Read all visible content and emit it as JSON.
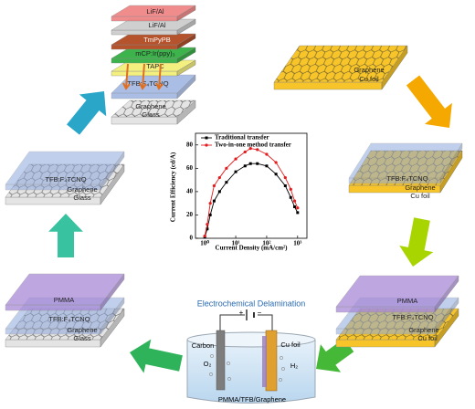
{
  "chart_data": {
    "type": "line",
    "xscale": "log",
    "legend": "upper left",
    "xlabel": "Current Density (mA/cm²)",
    "ylabel": "Current Efficiency (cd/A)",
    "x": [
      1,
      1.2,
      1.5,
      2,
      3,
      5,
      10,
      20,
      30,
      50,
      100,
      200,
      400,
      600,
      800,
      1000
    ],
    "series": [
      {
        "name": "Traditional transfer",
        "color": "#000000",
        "marker": "square",
        "values": [
          1,
          8,
          20,
          32,
          40,
          48,
          57,
          62,
          64,
          64,
          62,
          55,
          45,
          35,
          27,
          22
        ]
      },
      {
        "name": "Two-in-one method transfer",
        "color": "#e41a1c",
        "marker": "circle",
        "values": [
          2,
          12,
          30,
          45,
          52,
          60,
          68,
          74,
          77,
          76,
          72,
          65,
          52,
          42,
          32,
          26
        ]
      }
    ],
    "xlim": [
      0.5,
      2000
    ],
    "xticks": [
      {
        "value": 1,
        "label": "10⁰"
      },
      {
        "value": 10,
        "label": "10¹"
      },
      {
        "value": 100,
        "label": "10²"
      },
      {
        "value": 1000,
        "label": "10³"
      }
    ],
    "ylim": [
      0,
      90
    ],
    "yticks": [
      0,
      20,
      40,
      60,
      80
    ],
    "grid": false
  },
  "stacks": [
    {
      "labels": [
        "LiF/Al",
        "LiF/Al",
        "TmPyPB",
        "mCP:Ir(ppy)₃",
        "TAPC",
        "TFB:F₄TCNQ",
        "Graphene",
        "Glass"
      ]
    },
    {
      "labels": [
        "Graphene",
        "Cu foil"
      ]
    },
    {
      "labels": [
        "TFB:F₄TCNQ",
        "Graphene",
        "Cu foil"
      ]
    },
    {
      "labels": [
        "PMMA",
        "TFB:F₄TCNQ",
        "Graphene",
        "Cu foil"
      ]
    },
    {
      "labels": [
        "PMMA",
        "TFB:F₄TCNQ",
        "Graphene",
        "Glass"
      ]
    },
    {
      "labels": [
        "TFB:F₄TCNQ",
        "Graphene",
        "Glass"
      ]
    }
  ],
  "cell": {
    "title": "Electrochemical Delamination",
    "plus": "+",
    "minus": "−",
    "anode": "Carbon",
    "cathode": "Cu foil",
    "anode_gas": "O₂",
    "cathode_gas": "H₂",
    "sample": "PMMA/TFB/Graphene"
  }
}
